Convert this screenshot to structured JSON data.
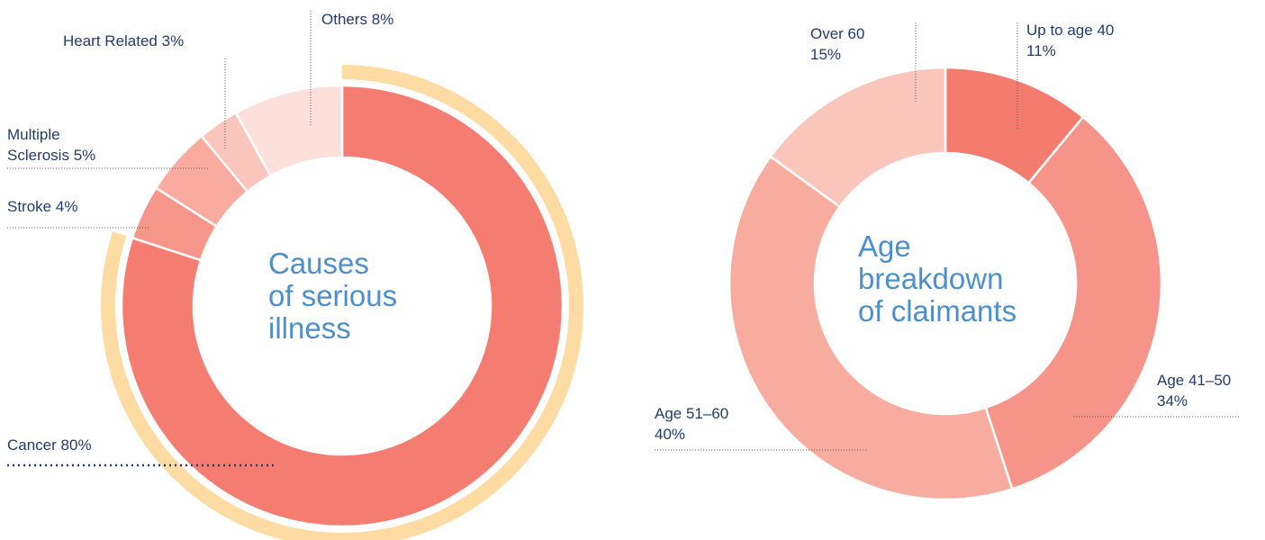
{
  "chart_data": [
    {
      "type": "donut",
      "title": [
        "Causes",
        "of serious",
        "illness"
      ],
      "categories": [
        "Cancer",
        "Stroke",
        "Multiple Sclerosis",
        "Heart Related",
        "Others"
      ],
      "values": [
        80,
        4,
        5,
        3,
        8
      ],
      "value_labels": [
        "80%",
        "4%",
        "5%",
        "3%",
        "8%"
      ],
      "colors": [
        "#f47c70",
        "#f6968a",
        "#f8ab9e",
        "#fac5ba",
        "#fde0d9"
      ],
      "highlight": 0,
      "highlight_color": "#fedba3"
    },
    {
      "type": "donut",
      "title": [
        "Age",
        "breakdown",
        "of claimants"
      ],
      "categories": [
        "Up to age 40",
        "Age 41–50",
        "Age 51–60",
        "Over 60"
      ],
      "values": [
        11,
        34,
        40,
        15
      ],
      "value_labels": [
        "11%",
        "34%",
        "40%",
        "15%"
      ],
      "colors": [
        "#f47c6e",
        "#f6948a",
        "#f8ac9f",
        "#fac6bb"
      ]
    }
  ]
}
